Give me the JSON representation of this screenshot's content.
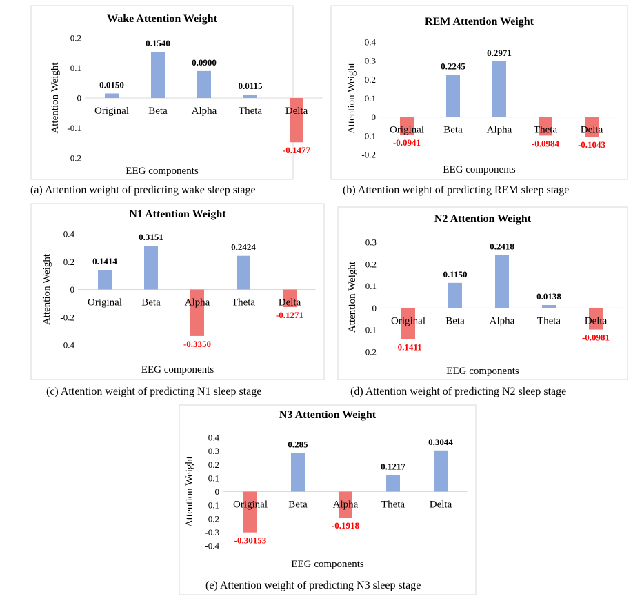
{
  "colors": {
    "positive": "#8faadc",
    "negative": "#f07674",
    "negative_label": "#ff0000",
    "zero_line": "#d9d9d9",
    "frame": "#d9d9d9"
  },
  "chart_data": [
    {
      "type": "bar",
      "title": "Wake Attention Weight",
      "xlabel": "EEG components",
      "ylabel": "Attention Weight",
      "categories": [
        "Original",
        "Beta",
        "Alpha",
        "Theta",
        "Delta"
      ],
      "values": [
        0.015,
        0.154,
        0.09,
        0.0115,
        -0.1477
      ],
      "value_labels": [
        "0.0150",
        "0.1540",
        "0.0900",
        "0.0115",
        "-0.1477"
      ],
      "ylim": [
        -0.2,
        0.2
      ],
      "yticks": [
        0.2,
        0.1,
        0,
        -0.1,
        -0.2
      ],
      "ytick_labels": [
        "0.2",
        "0.1",
        "0",
        "-0.1",
        "-0.2"
      ],
      "grid": false,
      "caption": "(a) Attention weight of predicting wake sleep stage"
    },
    {
      "type": "bar",
      "title": "REM Attention Weight",
      "xlabel": "EEG components",
      "ylabel": "Attention Weight",
      "categories": [
        "Original",
        "Beta",
        "Alpha",
        "Theta",
        "Delta"
      ],
      "values": [
        -0.0941,
        0.2245,
        0.2971,
        -0.0984,
        -0.1043
      ],
      "value_labels": [
        "-0.0941",
        "0.2245",
        "0.2971",
        "-0.0984",
        "-0.1043"
      ],
      "ylim": [
        -0.2,
        0.4
      ],
      "yticks": [
        0.4,
        0.3,
        0.2,
        0.1,
        0,
        -0.1,
        -0.2
      ],
      "ytick_labels": [
        "0.4",
        "0.3",
        "0.2",
        "0.1",
        "0",
        "-0.1",
        "-0.2"
      ],
      "grid": false,
      "caption": "(b) Attention weight of predicting REM sleep stage"
    },
    {
      "type": "bar",
      "title": "N1 Attention Weight",
      "xlabel": "EEG components",
      "ylabel": "Attention Weight",
      "categories": [
        "Original",
        "Beta",
        "Alpha",
        "Theta",
        "Delta"
      ],
      "values": [
        0.1414,
        0.3151,
        -0.335,
        0.2424,
        -0.1271
      ],
      "value_labels": [
        "0.1414",
        "0.3151",
        "-0.3350",
        "0.2424",
        "-0.1271"
      ],
      "ylim": [
        -0.4,
        0.4
      ],
      "yticks": [
        0.4,
        0.2,
        0,
        -0.2,
        -0.4
      ],
      "ytick_labels": [
        "0.4",
        "0.2",
        "0",
        "-0.2",
        "-0.4"
      ],
      "grid": false,
      "caption": "(c) Attention weight of predicting N1 sleep stage"
    },
    {
      "type": "bar",
      "title": "N2 Attention Weight",
      "xlabel": "EEG components",
      "ylabel": "Attention Weight",
      "categories": [
        "Original",
        "Beta",
        "Alpha",
        "Theta",
        "Delta"
      ],
      "values": [
        -0.1411,
        0.115,
        0.2418,
        0.0138,
        -0.0981
      ],
      "value_labels": [
        "-0.1411",
        "0.1150",
        "0.2418",
        "0.0138",
        "-0.0981"
      ],
      "ylim": [
        -0.2,
        0.3
      ],
      "yticks": [
        0.3,
        0.2,
        0.1,
        0,
        -0.1,
        -0.2
      ],
      "ytick_labels": [
        "0.3",
        "0.2",
        "0.1",
        "0",
        "-0.1",
        "-0.2"
      ],
      "grid": false,
      "caption": "(d) Attention weight of predicting N2 sleep stage"
    },
    {
      "type": "bar",
      "title": "N3 Attention Weight",
      "xlabel": "EEG components",
      "ylabel": "Attention Weight",
      "categories": [
        "Original",
        "Beta",
        "Alpha",
        "Theta",
        "Delta"
      ],
      "values": [
        -0.30153,
        0.285,
        -0.1918,
        0.1217,
        0.3044
      ],
      "value_labels": [
        "-0.30153",
        "0.285",
        "-0.1918",
        "0.1217",
        "0.3044"
      ],
      "ylim": [
        -0.4,
        0.4
      ],
      "yticks": [
        0.4,
        0.3,
        0.2,
        0.1,
        0,
        -0.1,
        -0.2,
        -0.3,
        -0.4
      ],
      "ytick_labels": [
        "0.4",
        "0.3",
        "0.2",
        "0.1",
        "0",
        "-0.1",
        "-0.2",
        "-0.3",
        "-0.4"
      ],
      "grid": false,
      "caption": "(e) Attention weight of predicting N3 sleep stage"
    }
  ]
}
